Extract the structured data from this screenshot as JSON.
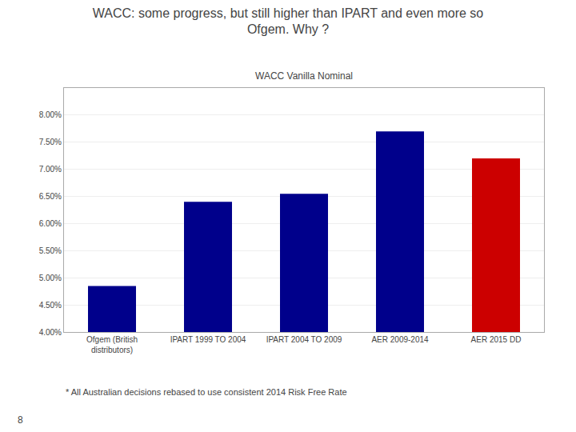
{
  "chart_data": {
    "type": "bar",
    "title": "WACC: some progress, but still higher than IPART and even more so\nOfgem. Why ?",
    "subtitle": "WACC Vanilla Nominal",
    "categories": [
      "Ofgem (British\ndistributors)",
      "IPART 1999 TO 2004",
      "IPART 2004 TO 2009",
      "AER 2009-2014",
      "AER 2015 DD"
    ],
    "values": [
      0.0485,
      0.064,
      0.0655,
      0.077,
      0.072
    ],
    "colors": [
      "#00008B",
      "#00008B",
      "#00008B",
      "#00008B",
      "#CC0000"
    ],
    "ylim": [
      0.04,
      0.085
    ],
    "yticks": [
      {
        "value": 0.04,
        "label": "4.00%"
      },
      {
        "value": 0.045,
        "label": "4.50%"
      },
      {
        "value": 0.05,
        "label": "5.00%"
      },
      {
        "value": 0.055,
        "label": "5.50%"
      },
      {
        "value": 0.06,
        "label": "6.00%"
      },
      {
        "value": 0.065,
        "label": "6.50%"
      },
      {
        "value": 0.07,
        "label": "7.00%"
      },
      {
        "value": 0.075,
        "label": "7.50%"
      },
      {
        "value": 0.08,
        "label": "8.00%"
      }
    ],
    "grid": true,
    "annotations": [
      "* All Australian decisions rebased to use consistent 2014 Risk Free Rate",
      "8"
    ]
  }
}
